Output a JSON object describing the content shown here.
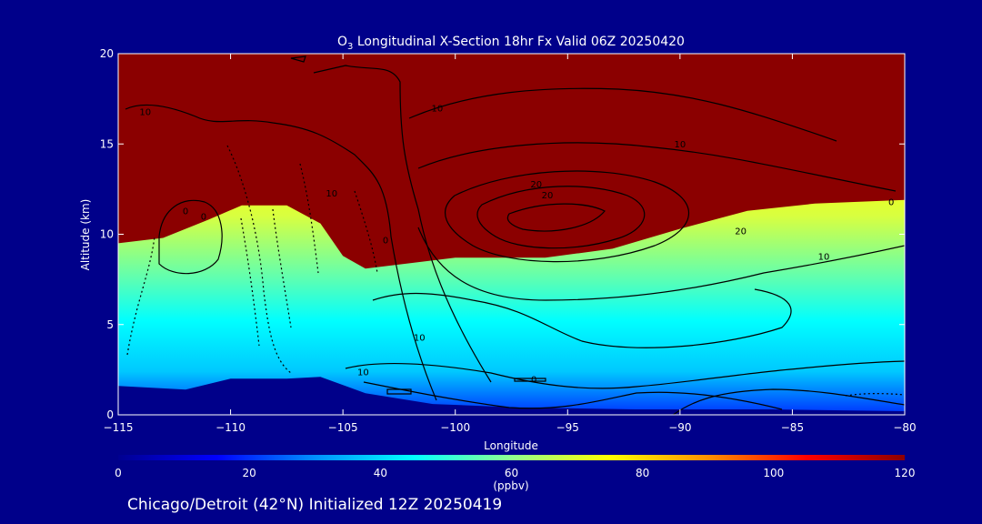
{
  "chart_data": {
    "type": "heatmap",
    "title_prefix": "O",
    "title_subscript": "3",
    "title_rest": " Longitudinal X-Section 18hr  Fx Valid 06Z 20250420",
    "xlabel": "Longitude",
    "ylabel": "Altitude (km)",
    "xlim": [
      -115,
      -80
    ],
    "ylim": [
      0,
      20
    ],
    "x_ticks": [
      -115,
      -110,
      -105,
      -100,
      -95,
      -90,
      -85,
      -80
    ],
    "x_tick_labels": [
      "−115",
      "−110",
      "−105",
      "−100",
      "−95",
      "−90",
      "−85",
      "−80"
    ],
    "y_ticks": [
      0,
      5,
      10,
      15,
      20
    ],
    "y_tick_labels": [
      "0",
      "5",
      "10",
      "15",
      "20"
    ],
    "colorbar": {
      "range": [
        0,
        120
      ],
      "ticks": [
        0,
        20,
        40,
        60,
        80,
        100,
        120
      ],
      "tick_labels": [
        "0",
        "20",
        "40",
        "60",
        "80",
        "100",
        "120"
      ],
      "unit": "(ppbv)",
      "colors": [
        "#000090",
        "#0000ff",
        "#0090ff",
        "#00ffff",
        "#90ff90",
        "#ffff00",
        "#ff9000",
        "#ff0000",
        "#8b0000"
      ]
    },
    "terrain_profile": [
      {
        "lon": -115,
        "alt": 1.6
      },
      {
        "lon": -112,
        "alt": 1.4
      },
      {
        "lon": -110,
        "alt": 2.0
      },
      {
        "lon": -107.5,
        "alt": 2.0
      },
      {
        "lon": -106,
        "alt": 2.1
      },
      {
        "lon": -104,
        "alt": 1.2
      },
      {
        "lon": -101,
        "alt": 0.6
      },
      {
        "lon": -97,
        "alt": 0.4
      },
      {
        "lon": -92,
        "alt": 0.3
      },
      {
        "lon": -86,
        "alt": 0.3
      },
      {
        "lon": -80,
        "alt": 0.2
      }
    ],
    "tropopause_high_ozone_base": [
      {
        "lon": -115,
        "alt": 9.5
      },
      {
        "lon": -113,
        "alt": 9.8
      },
      {
        "lon": -111,
        "alt": 10.8
      },
      {
        "lon": -109.5,
        "alt": 11.6
      },
      {
        "lon": -107.5,
        "alt": 11.6
      },
      {
        "lon": -106,
        "alt": 10.6
      },
      {
        "lon": -105,
        "alt": 8.8
      },
      {
        "lon": -104,
        "alt": 8.1
      },
      {
        "lon": -102,
        "alt": 8.4
      },
      {
        "lon": -100,
        "alt": 8.7
      },
      {
        "lon": -96,
        "alt": 8.7
      },
      {
        "lon": -93,
        "alt": 9.2
      },
      {
        "lon": -90,
        "alt": 10.3
      },
      {
        "lon": -87,
        "alt": 11.3
      },
      {
        "lon": -84,
        "alt": 11.7
      },
      {
        "lon": -80,
        "alt": 11.9
      }
    ],
    "contour_labels": [
      {
        "text": "10",
        "lon": -113.8,
        "alt": 16.6
      },
      {
        "text": "10",
        "lon": -100.8,
        "alt": 16.8
      },
      {
        "text": "10",
        "lon": -90,
        "alt": 14.8
      },
      {
        "text": "10",
        "lon": -105.5,
        "alt": 12.1
      },
      {
        "text": "20",
        "lon": -96.4,
        "alt": 12.6
      },
      {
        "text": "20",
        "lon": -95.9,
        "alt": 12.0
      },
      {
        "text": "20",
        "lon": -87.3,
        "alt": 10.0
      },
      {
        "text": "10",
        "lon": -83.6,
        "alt": 8.6
      },
      {
        "text": "10",
        "lon": -101.6,
        "alt": 4.1
      },
      {
        "text": "10",
        "lon": -104.1,
        "alt": 2.2
      },
      {
        "text": "0",
        "lon": -112,
        "alt": 11.1
      },
      {
        "text": "0",
        "lon": -111.2,
        "alt": 10.8
      },
      {
        "text": "0",
        "lon": -103.1,
        "alt": 9.5
      },
      {
        "text": "0",
        "lon": -96.5,
        "alt": 1.8
      },
      {
        "text": "0",
        "lon": -80.6,
        "alt": 11.6
      }
    ],
    "footer": "Chicago/Detroit (42°N) Initialized 12Z 20250419"
  }
}
